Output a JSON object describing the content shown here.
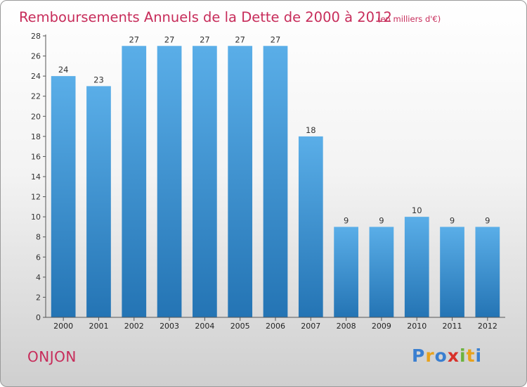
{
  "chart_data": {
    "type": "bar",
    "title": "Remboursements Annuels de la Dette de 2000 à 2012",
    "subtitle": "(en milliers d'€)",
    "categories": [
      "2000",
      "2001",
      "2002",
      "2003",
      "2004",
      "2005",
      "2006",
      "2007",
      "2008",
      "2009",
      "2010",
      "2011",
      "2012"
    ],
    "values": [
      24,
      23,
      27,
      27,
      27,
      27,
      27,
      18,
      9,
      9,
      10,
      9,
      9
    ],
    "ylim": [
      0,
      28
    ],
    "yticks": [
      0,
      2,
      4,
      6,
      8,
      10,
      12,
      14,
      16,
      18,
      20,
      22,
      24,
      26,
      28
    ],
    "xlabel": "",
    "ylabel": "",
    "grid": false,
    "legend": "none",
    "colors": {
      "bar_light": "#5aaee8",
      "bar_dark": "#2474b4",
      "title": "#c72c5a"
    }
  },
  "footer": {
    "commune": "ONJON",
    "brand_letters": [
      "P",
      "r",
      "o",
      "x",
      "i",
      "t",
      "i"
    ],
    "brand_colors": [
      "#3a7fd0",
      "#e8a21c",
      "#3a7fd0",
      "#d8312a",
      "#6cb33e",
      "#e8a21c",
      "#3a7fd0"
    ]
  }
}
